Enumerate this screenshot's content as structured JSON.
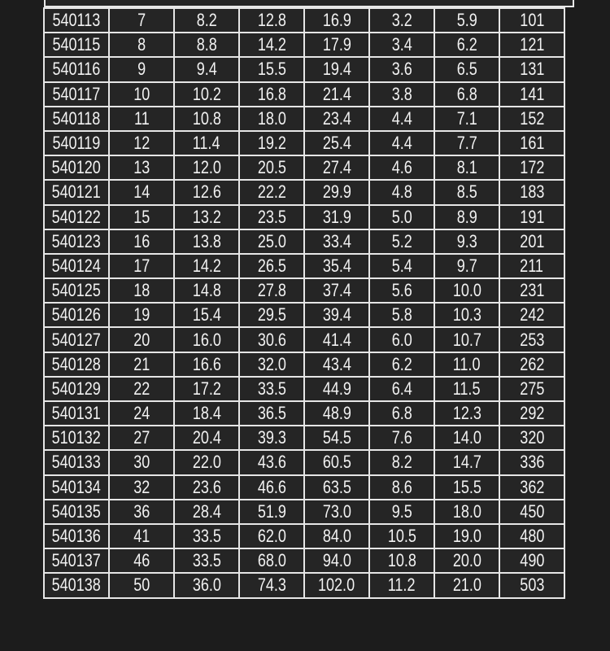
{
  "table": {
    "rows": [
      [
        "540113",
        "7",
        "8.2",
        "12.8",
        "16.9",
        "3.2",
        "5.9",
        "101"
      ],
      [
        "540115",
        "8",
        "8.8",
        "14.2",
        "17.9",
        "3.4",
        "6.2",
        "121"
      ],
      [
        "540116",
        "9",
        "9.4",
        "15.5",
        "19.4",
        "3.6",
        "6.5",
        "131"
      ],
      [
        "540117",
        "10",
        "10.2",
        "16.8",
        "21.4",
        "3.8",
        "6.8",
        "141"
      ],
      [
        "540118",
        "11",
        "10.8",
        "18.0",
        "23.4",
        "4.4",
        "7.1",
        "152"
      ],
      [
        "540119",
        "12",
        "11.4",
        "19.2",
        "25.4",
        "4.4",
        "7.7",
        "161"
      ],
      [
        "540120",
        "13",
        "12.0",
        "20.5",
        "27.4",
        "4.6",
        "8.1",
        "172"
      ],
      [
        "540121",
        "14",
        "12.6",
        "22.2",
        "29.9",
        "4.8",
        "8.5",
        "183"
      ],
      [
        "540122",
        "15",
        "13.2",
        "23.5",
        "31.9",
        "5.0",
        "8.9",
        "191"
      ],
      [
        "540123",
        "16",
        "13.8",
        "25.0",
        "33.4",
        "5.2",
        "9.3",
        "201"
      ],
      [
        "540124",
        "17",
        "14.2",
        "26.5",
        "35.4",
        "5.4",
        "9.7",
        "211"
      ],
      [
        "540125",
        "18",
        "14.8",
        "27.8",
        "37.4",
        "5.6",
        "10.0",
        "231"
      ],
      [
        "540126",
        "19",
        "15.4",
        "29.5",
        "39.4",
        "5.8",
        "10.3",
        "242"
      ],
      [
        "540127",
        "20",
        "16.0",
        "30.6",
        "41.4",
        "6.0",
        "10.7",
        "253"
      ],
      [
        "540128",
        "21",
        "16.6",
        "32.0",
        "43.4",
        "6.2",
        "11.0",
        "262"
      ],
      [
        "540129",
        "22",
        "17.2",
        "33.5",
        "44.9",
        "6.4",
        "11.5",
        "275"
      ],
      [
        "540131",
        "24",
        "18.4",
        "36.5",
        "48.9",
        "6.8",
        "12.3",
        "292"
      ],
      [
        "510132",
        "27",
        "20.4",
        "39.3",
        "54.5",
        "7.6",
        "14.0",
        "320"
      ],
      [
        "540133",
        "30",
        "22.0",
        "43.6",
        "60.5",
        "8.2",
        "14.7",
        "336"
      ],
      [
        "540134",
        "32",
        "23.6",
        "46.6",
        "63.5",
        "8.6",
        "15.5",
        "362"
      ],
      [
        "540135",
        "36",
        "28.4",
        "51.9",
        "73.0",
        "9.5",
        "18.0",
        "450"
      ],
      [
        "540136",
        "41",
        "33.5",
        "62.0",
        "84.0",
        "10.5",
        "19.0",
        "480"
      ],
      [
        "540137",
        "46",
        "33.5",
        "68.0",
        "94.0",
        "10.8",
        "20.0",
        "490"
      ],
      [
        "540138",
        "50",
        "36.0",
        "74.3",
        "102.0",
        "11.2",
        "21.0",
        "503"
      ]
    ]
  }
}
